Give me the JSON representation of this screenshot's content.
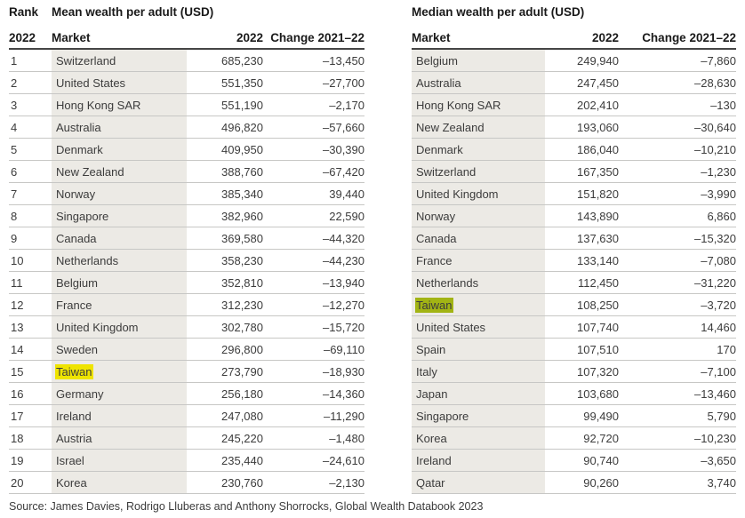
{
  "mean_table": {
    "rank_label": "Rank",
    "rank_year": "2022",
    "title": "Mean wealth per adult (USD)",
    "col_market": "Market",
    "col_year": "2022",
    "col_change": "Change 2021–22",
    "highlight_color": "#efe400",
    "rows": [
      {
        "rank": "1",
        "market": "Switzerland",
        "value": "685,230",
        "change": "–13,450",
        "highlight": false
      },
      {
        "rank": "2",
        "market": "United States",
        "value": "551,350",
        "change": "–27,700",
        "highlight": false
      },
      {
        "rank": "3",
        "market": "Hong Kong SAR",
        "value": "551,190",
        "change": "–2,170",
        "highlight": false
      },
      {
        "rank": "4",
        "market": "Australia",
        "value": "496,820",
        "change": "–57,660",
        "highlight": false
      },
      {
        "rank": "5",
        "market": "Denmark",
        "value": "409,950",
        "change": "–30,390",
        "highlight": false
      },
      {
        "rank": "6",
        "market": "New Zealand",
        "value": "388,760",
        "change": "–67,420",
        "highlight": false
      },
      {
        "rank": "7",
        "market": "Norway",
        "value": "385,340",
        "change": "39,440",
        "highlight": false
      },
      {
        "rank": "8",
        "market": "Singapore",
        "value": "382,960",
        "change": "22,590",
        "highlight": false
      },
      {
        "rank": "9",
        "market": "Canada",
        "value": "369,580",
        "change": "–44,320",
        "highlight": false
      },
      {
        "rank": "10",
        "market": "Netherlands",
        "value": "358,230",
        "change": "–44,230",
        "highlight": false
      },
      {
        "rank": "11",
        "market": "Belgium",
        "value": "352,810",
        "change": "–13,940",
        "highlight": false
      },
      {
        "rank": "12",
        "market": "France",
        "value": "312,230",
        "change": "–12,270",
        "highlight": false
      },
      {
        "rank": "13",
        "market": "United Kingdom",
        "value": "302,780",
        "change": "–15,720",
        "highlight": false
      },
      {
        "rank": "14",
        "market": "Sweden",
        "value": "296,800",
        "change": "–69,110",
        "highlight": false
      },
      {
        "rank": "15",
        "market": "Taiwan",
        "value": "273,790",
        "change": "–18,930",
        "highlight": true
      },
      {
        "rank": "16",
        "market": "Germany",
        "value": "256,180",
        "change": "–14,360",
        "highlight": false
      },
      {
        "rank": "17",
        "market": "Ireland",
        "value": "247,080",
        "change": "–11,290",
        "highlight": false
      },
      {
        "rank": "18",
        "market": "Austria",
        "value": "245,220",
        "change": "–1,480",
        "highlight": false
      },
      {
        "rank": "19",
        "market": "Israel",
        "value": "235,440",
        "change": "–24,610",
        "highlight": false
      },
      {
        "rank": "20",
        "market": "Korea",
        "value": "230,760",
        "change": "–2,130",
        "highlight": false
      }
    ]
  },
  "median_table": {
    "title": "Median wealth per adult (USD)",
    "col_market": "Market",
    "col_year": "2022",
    "col_change": "Change 2021–22",
    "highlight_color": "#a2b414",
    "rows": [
      {
        "market": "Belgium",
        "value": "249,940",
        "change": "–7,860",
        "highlight": false
      },
      {
        "market": "Australia",
        "value": "247,450",
        "change": "–28,630",
        "highlight": false
      },
      {
        "market": "Hong Kong SAR",
        "value": "202,410",
        "change": "–130",
        "highlight": false
      },
      {
        "market": "New Zealand",
        "value": "193,060",
        "change": "–30,640",
        "highlight": false
      },
      {
        "market": "Denmark",
        "value": "186,040",
        "change": "–10,210",
        "highlight": false
      },
      {
        "market": "Switzerland",
        "value": "167,350",
        "change": "–1,230",
        "highlight": false
      },
      {
        "market": "United Kingdom",
        "value": "151,820",
        "change": "–3,990",
        "highlight": false
      },
      {
        "market": "Norway",
        "value": "143,890",
        "change": "6,860",
        "highlight": false
      },
      {
        "market": "Canada",
        "value": "137,630",
        "change": "–15,320",
        "highlight": false
      },
      {
        "market": "France",
        "value": "133,140",
        "change": "–7,080",
        "highlight": false
      },
      {
        "market": "Netherlands",
        "value": "112,450",
        "change": "–31,220",
        "highlight": false
      },
      {
        "market": "Taiwan",
        "value": "108,250",
        "change": "–3,720",
        "highlight": true
      },
      {
        "market": "United States",
        "value": "107,740",
        "change": "14,460",
        "highlight": false
      },
      {
        "market": "Spain",
        "value": "107,510",
        "change": "170",
        "highlight": false
      },
      {
        "market": "Italy",
        "value": "107,320",
        "change": "–7,100",
        "highlight": false
      },
      {
        "market": "Japan",
        "value": "103,680",
        "change": "–13,460",
        "highlight": false
      },
      {
        "market": "Singapore",
        "value": "99,490",
        "change": "5,790",
        "highlight": false
      },
      {
        "market": "Korea",
        "value": "92,720",
        "change": "–10,230",
        "highlight": false
      },
      {
        "market": "Ireland",
        "value": "90,740",
        "change": "–3,650",
        "highlight": false
      },
      {
        "market": "Qatar",
        "value": "90,260",
        "change": "3,740",
        "highlight": false
      }
    ]
  },
  "source": "Source: James Davies, Rodrigo Lluberas and Anthony Shorrocks, Global Wealth Databook 2023"
}
